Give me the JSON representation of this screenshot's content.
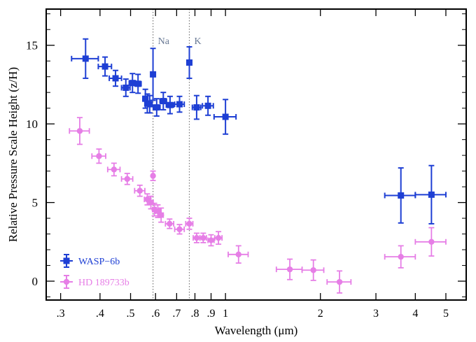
{
  "chart_data": {
    "type": "scatter",
    "xlabel": "Wavelength (μm)",
    "ylabel": "Relative Pressure Scale Height (z/H)",
    "xscale": "log",
    "xlim": [
      0.27,
      5.8
    ],
    "ylim": [
      -1.2,
      17.3
    ],
    "x_ticks": [
      {
        "value": 0.3,
        "label": ".3"
      },
      {
        "value": 0.4,
        "label": ".4"
      },
      {
        "value": 0.5,
        "label": ".5"
      },
      {
        "value": 0.6,
        "label": ".6"
      },
      {
        "value": 0.7,
        "label": ".7"
      },
      {
        "value": 0.8,
        "label": ".8"
      },
      {
        "value": 0.9,
        "label": ".9"
      },
      {
        "value": 1,
        "label": "1"
      },
      {
        "value": 2,
        "label": "2"
      },
      {
        "value": 3,
        "label": "3"
      },
      {
        "value": 4,
        "label": "4"
      },
      {
        "value": 5,
        "label": "5"
      }
    ],
    "y_ticks": [
      0,
      5,
      10,
      15
    ],
    "grid": false,
    "legend_position": "bottom-left",
    "reference_lines": [
      {
        "label": "Na",
        "x": 0.589
      },
      {
        "label": "K",
        "x": 0.768
      }
    ],
    "series": [
      {
        "name": "WASP−6b",
        "color": "#1e3fd4",
        "marker": "square",
        "points": [
          {
            "x": 0.36,
            "y": 14.15,
            "xerr": 0.035,
            "yerr": 1.25
          },
          {
            "x": 0.415,
            "y": 13.65,
            "xerr": 0.02,
            "yerr": 0.6
          },
          {
            "x": 0.448,
            "y": 12.9,
            "xerr": 0.02,
            "yerr": 0.5
          },
          {
            "x": 0.483,
            "y": 12.3,
            "xerr": 0.015,
            "yerr": 0.55
          },
          {
            "x": 0.507,
            "y": 12.6,
            "xerr": 0.012,
            "yerr": 0.6
          },
          {
            "x": 0.528,
            "y": 12.55,
            "xerr": 0.012,
            "yerr": 0.6
          },
          {
            "x": 0.557,
            "y": 11.6,
            "xerr": 0.01,
            "yerr": 0.6
          },
          {
            "x": 0.565,
            "y": 11.3,
            "xerr": 0.01,
            "yerr": 0.6
          },
          {
            "x": 0.575,
            "y": 11.25,
            "xerr": 0.01,
            "yerr": 0.55
          },
          {
            "x": 0.589,
            "y": 13.15,
            "xerr": 0.004,
            "yerr": 1.65
          },
          {
            "x": 0.605,
            "y": 11.05,
            "xerr": 0.015,
            "yerr": 0.55
          },
          {
            "x": 0.635,
            "y": 11.45,
            "xerr": 0.015,
            "yerr": 0.55
          },
          {
            "x": 0.667,
            "y": 11.2,
            "xerr": 0.018,
            "yerr": 0.55
          },
          {
            "x": 0.715,
            "y": 11.25,
            "xerr": 0.025,
            "yerr": 0.5
          },
          {
            "x": 0.768,
            "y": 13.9,
            "xerr": 0.004,
            "yerr": 1.0
          },
          {
            "x": 0.81,
            "y": 11.05,
            "xerr": 0.025,
            "yerr": 0.75
          },
          {
            "x": 0.88,
            "y": 11.15,
            "xerr": 0.035,
            "yerr": 0.6
          },
          {
            "x": 1.0,
            "y": 10.45,
            "xerr": 0.08,
            "yerr": 1.1
          },
          {
            "x": 3.6,
            "y": 5.45,
            "xerr": 0.4,
            "yerr": 1.75
          },
          {
            "x": 4.5,
            "y": 5.5,
            "xerr": 0.5,
            "yerr": 1.85
          }
        ]
      },
      {
        "name": "HD 189733b",
        "color": "#e67ee6",
        "marker": "circle",
        "points": [
          {
            "x": 0.345,
            "y": 9.55,
            "xerr": 0.025,
            "yerr": 0.85
          },
          {
            "x": 0.397,
            "y": 7.95,
            "xerr": 0.02,
            "yerr": 0.45
          },
          {
            "x": 0.443,
            "y": 7.1,
            "xerr": 0.02,
            "yerr": 0.4
          },
          {
            "x": 0.488,
            "y": 6.5,
            "xerr": 0.02,
            "yerr": 0.35
          },
          {
            "x": 0.535,
            "y": 5.75,
            "xerr": 0.02,
            "yerr": 0.35
          },
          {
            "x": 0.565,
            "y": 5.2,
            "xerr": 0.012,
            "yerr": 0.35
          },
          {
            "x": 0.58,
            "y": 5.0,
            "xerr": 0.01,
            "yerr": 0.4
          },
          {
            "x": 0.589,
            "y": 6.7,
            "xerr": 0.004,
            "yerr": 0.3
          },
          {
            "x": 0.595,
            "y": 4.55,
            "xerr": 0.008,
            "yerr": 0.4
          },
          {
            "x": 0.61,
            "y": 4.45,
            "xerr": 0.01,
            "yerr": 0.4
          },
          {
            "x": 0.625,
            "y": 4.2,
            "xerr": 0.01,
            "yerr": 0.45
          },
          {
            "x": 0.665,
            "y": 3.65,
            "xerr": 0.02,
            "yerr": 0.3
          },
          {
            "x": 0.715,
            "y": 3.3,
            "xerr": 0.025,
            "yerr": 0.3
          },
          {
            "x": 0.768,
            "y": 3.65,
            "xerr": 0.02,
            "yerr": 0.35
          },
          {
            "x": 0.81,
            "y": 2.75,
            "xerr": 0.02,
            "yerr": 0.3
          },
          {
            "x": 0.85,
            "y": 2.75,
            "xerr": 0.02,
            "yerr": 0.3
          },
          {
            "x": 0.9,
            "y": 2.6,
            "xerr": 0.02,
            "yerr": 0.35
          },
          {
            "x": 0.95,
            "y": 2.75,
            "xerr": 0.025,
            "yerr": 0.4
          },
          {
            "x": 1.1,
            "y": 1.7,
            "xerr": 0.08,
            "yerr": 0.55
          },
          {
            "x": 1.6,
            "y": 0.75,
            "xerr": 0.15,
            "yerr": 0.65
          },
          {
            "x": 1.9,
            "y": 0.7,
            "xerr": 0.15,
            "yerr": 0.65
          },
          {
            "x": 2.3,
            "y": -0.05,
            "xerr": 0.2,
            "yerr": 0.7
          },
          {
            "x": 3.6,
            "y": 1.55,
            "xerr": 0.4,
            "yerr": 0.7
          },
          {
            "x": 4.5,
            "y": 2.5,
            "xerr": 0.5,
            "yerr": 0.9
          }
        ]
      }
    ]
  }
}
